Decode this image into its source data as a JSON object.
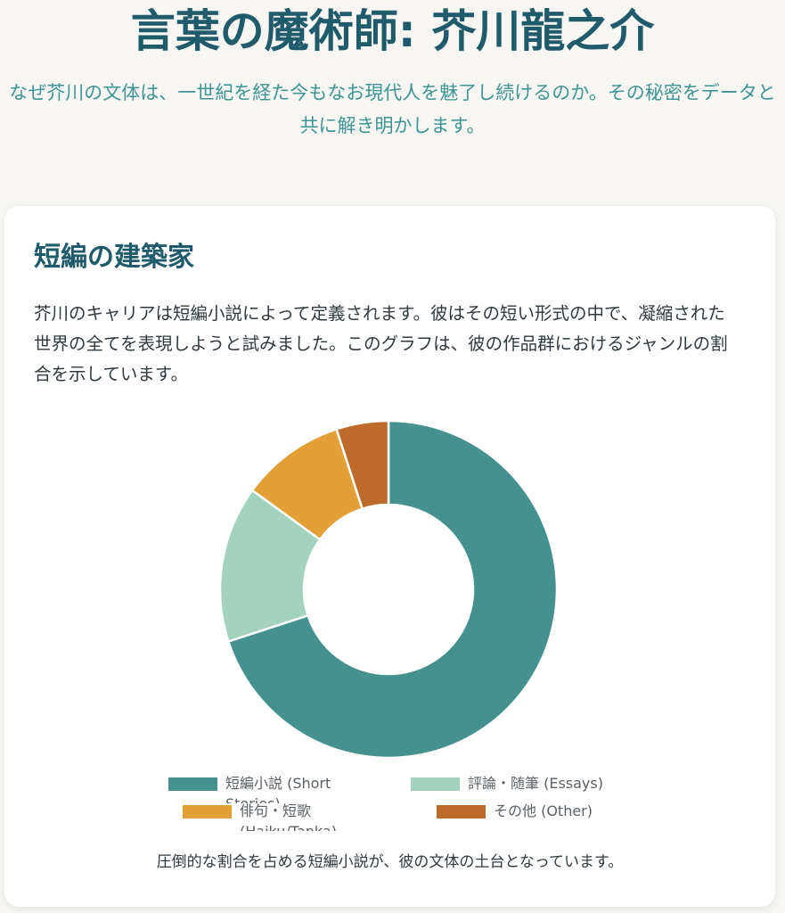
{
  "header": {
    "title": "言葉の魔術師: 芥川龍之介",
    "subtitle": "なぜ芥川の文体は、一世紀を経た今もなお現代人を魅了し続けるのか。その秘密をデータと共に解き明かします。"
  },
  "section": {
    "heading": "短編の建築家",
    "description": "芥川のキャリアは短編小説によって定義されます。彼はその短い形式の中で、凝縮された世界の全てを表現しようと試みました。このグラフは、彼の作品群におけるジャンルの割合を示しています。",
    "caption": "圧倒的な割合を占める短編小説が、彼の文体の土台となっています。"
  },
  "chart_data": {
    "type": "pie",
    "style": "doughnut",
    "legend_position": "bottom",
    "categories": [
      "短編小説 (Short Stories)",
      "評論・随筆 (Essays)",
      "俳句・短歌 (Haiku/Tanka)",
      "その他 (Other)"
    ],
    "values": [
      70,
      15,
      10,
      5
    ],
    "colors": [
      "#45918f",
      "#a3d3bf",
      "#e3a037",
      "#bd6a2a"
    ]
  }
}
